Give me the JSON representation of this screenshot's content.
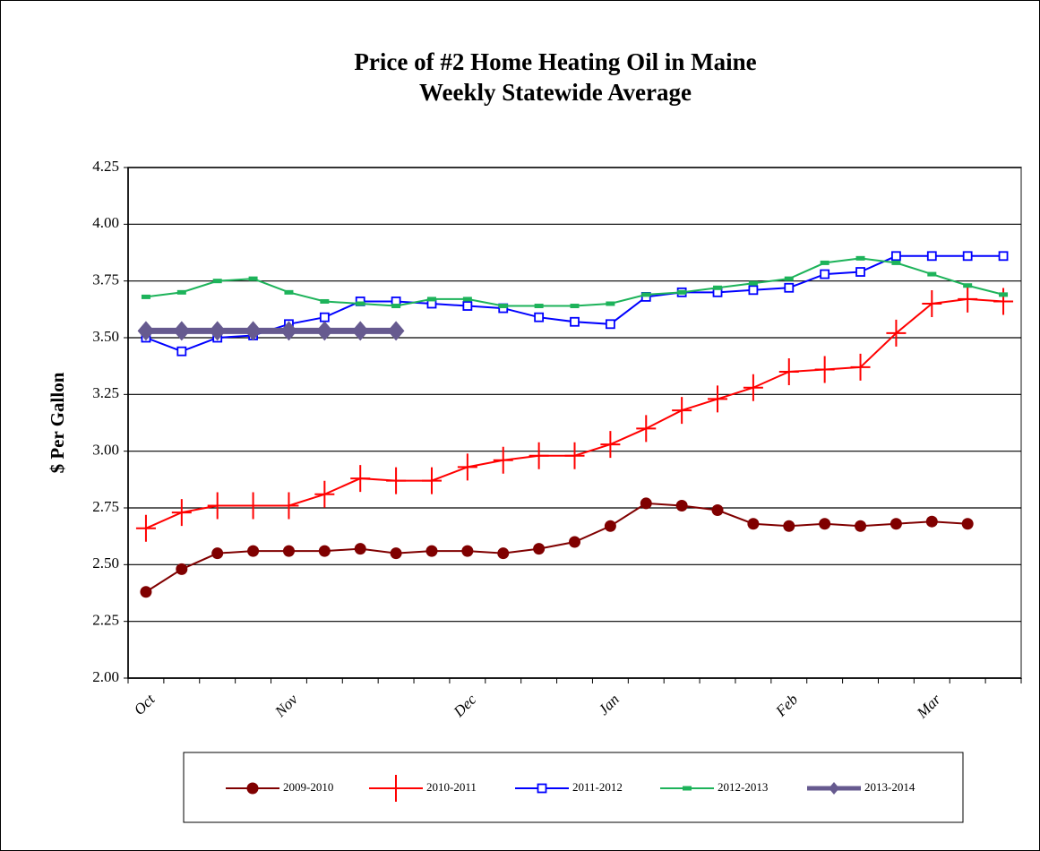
{
  "chart_data": {
    "type": "line",
    "title": "Price of #2 Home Heating Oil in Maine",
    "subtitle": "Weekly Statewide Average",
    "y_label": "$ Per Gallon",
    "categories": [
      "Oct",
      null,
      null,
      null,
      "Nov",
      null,
      null,
      null,
      null,
      "Dec",
      null,
      null,
      null,
      "Jan",
      null,
      null,
      null,
      null,
      "Feb",
      null,
      null,
      null,
      "Mar",
      null,
      null
    ],
    "ylim": [
      2,
      4.25
    ],
    "yticks": [
      {
        "value": 2,
        "label": "2.00"
      },
      {
        "value": 2.25,
        "label": "2.25"
      },
      {
        "value": 2.5,
        "label": "2.50"
      },
      {
        "value": 2.75,
        "label": "2.75"
      },
      {
        "value": 3,
        "label": "3.00"
      },
      {
        "value": 3.25,
        "label": "3.25"
      },
      {
        "value": 3.5,
        "label": "3.50"
      },
      {
        "value": 3.75,
        "label": "3.75"
      },
      {
        "value": 4,
        "label": "4.00"
      },
      {
        "value": 4.25,
        "label": "4.25"
      }
    ],
    "grid": true,
    "series": [
      {
        "name": "2009-2010",
        "color": "#800000",
        "marker": "circle",
        "values": [
          2.38,
          2.48,
          2.55,
          2.56,
          2.56,
          2.56,
          2.57,
          2.55,
          2.56,
          2.56,
          2.55,
          2.57,
          2.6,
          2.67,
          2.77,
          2.76,
          2.74,
          2.68,
          2.67,
          2.68,
          2.67,
          2.68,
          2.69,
          2.68,
          null
        ]
      },
      {
        "name": "2010-2011",
        "color": "#ff0000",
        "marker": "plus",
        "values": [
          2.66,
          2.73,
          2.76,
          2.76,
          2.76,
          2.81,
          2.88,
          2.87,
          2.87,
          2.93,
          2.96,
          2.98,
          2.98,
          3.03,
          3.1,
          3.18,
          3.23,
          3.28,
          3.35,
          3.36,
          3.37,
          3.52,
          3.65,
          3.67,
          3.66
        ]
      },
      {
        "name": "2011-2012",
        "color": "#0000ff",
        "marker": "square",
        "values": [
          3.5,
          3.44,
          3.5,
          3.51,
          3.56,
          3.59,
          3.66,
          3.66,
          3.65,
          3.64,
          3.63,
          3.59,
          3.57,
          3.56,
          3.68,
          3.7,
          3.7,
          3.71,
          3.72,
          3.78,
          3.79,
          3.86,
          3.86,
          3.86,
          3.86
        ]
      },
      {
        "name": "2012-2013",
        "color": "#1db35a",
        "marker": "dash",
        "values": [
          3.68,
          3.7,
          3.75,
          3.76,
          3.7,
          3.66,
          3.65,
          3.64,
          3.67,
          3.67,
          3.64,
          3.64,
          3.64,
          3.65,
          3.69,
          3.7,
          3.72,
          3.74,
          3.76,
          3.83,
          3.85,
          3.83,
          3.78,
          3.73,
          3.69
        ]
      },
      {
        "name": "2013-2014",
        "color": "#665a8f",
        "marker": "diamond",
        "values": [
          3.53,
          3.53,
          3.53,
          3.53,
          3.53,
          3.53,
          3.53,
          3.53,
          null,
          null,
          null,
          null,
          null,
          null,
          null,
          null,
          null,
          null,
          null,
          null,
          null,
          null,
          null,
          null,
          null
        ]
      }
    ]
  }
}
